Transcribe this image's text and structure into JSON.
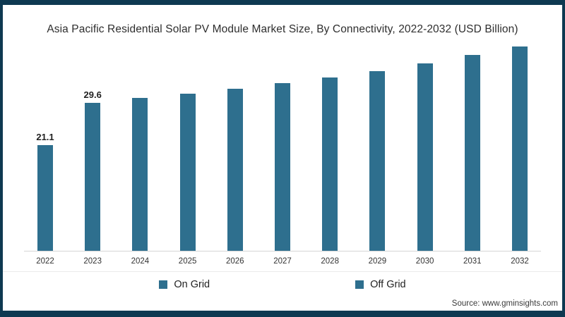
{
  "title": "Asia Pacific Residential Solar PV Module Market Size, By Connectivity, 2022-2032 (USD Billion)",
  "source": "Source: www.gminsights.com",
  "colors": {
    "bar": "#2e6f8e",
    "frame": "#0e3951",
    "axis_line": "#d4d4d4",
    "text": "#2e2e2e"
  },
  "legend": {
    "items": [
      {
        "label": "On Grid",
        "color": "#2e6f8e"
      },
      {
        "label": "Off Grid",
        "color": "#2e6f8e"
      }
    ],
    "position": "bottom"
  },
  "chart_data": {
    "type": "bar",
    "title": "Asia Pacific Residential Solar PV Module Market Size, By Connectivity, 2022-2032 (USD Billion)",
    "categories": [
      "2022",
      "2023",
      "2024",
      "2025",
      "2026",
      "2027",
      "2028",
      "2029",
      "2030",
      "2031",
      "2032"
    ],
    "values": [
      21.1,
      29.6,
      30.5,
      31.4,
      32.4,
      33.5,
      34.6,
      35.9,
      37.5,
      39.1,
      40.8
    ],
    "data_labels": [
      "21.1",
      "29.6",
      "",
      "",
      "",
      "",
      "",
      "",
      "",
      "",
      ""
    ],
    "xlabel": "",
    "ylabel": "",
    "ylim": [
      0,
      44
    ],
    "grid": false,
    "legend_entries": [
      "On Grid",
      "Off Grid"
    ],
    "legend_position": "bottom",
    "bar_color": "#2e6f8e"
  }
}
